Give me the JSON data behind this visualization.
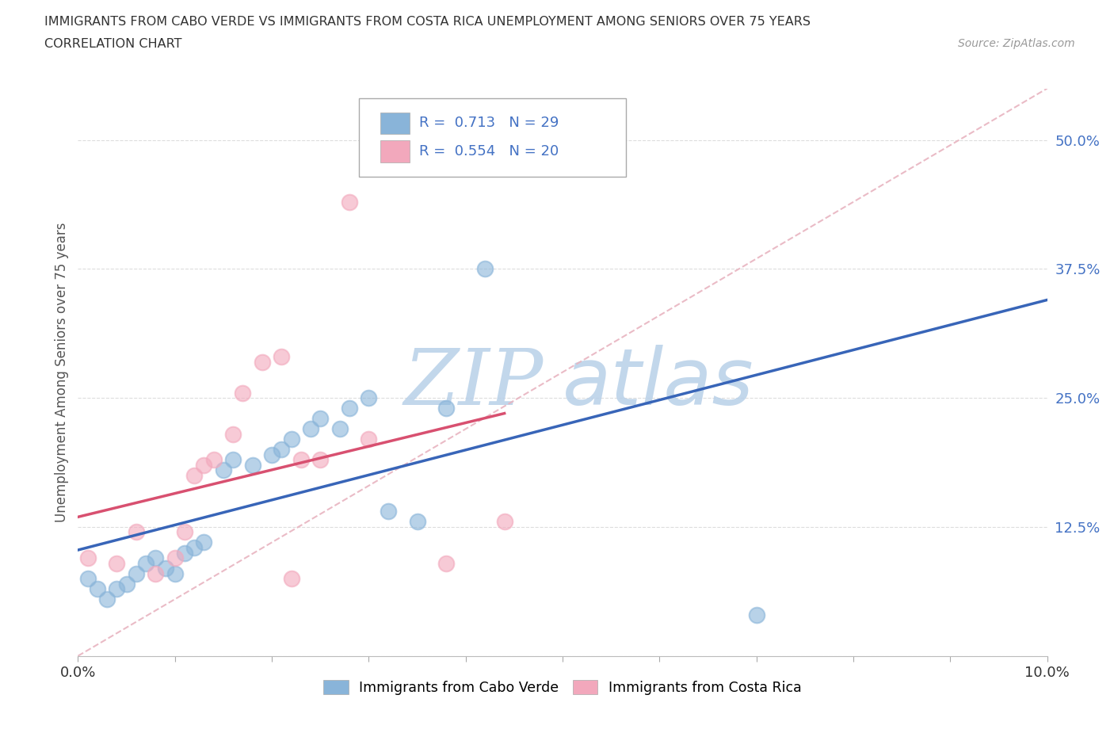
{
  "title_line1": "IMMIGRANTS FROM CABO VERDE VS IMMIGRANTS FROM COSTA RICA UNEMPLOYMENT AMONG SENIORS OVER 75 YEARS",
  "title_line2": "CORRELATION CHART",
  "source_text": "Source: ZipAtlas.com",
  "ylabel": "Unemployment Among Seniors over 75 years",
  "xlim": [
    0.0,
    0.1
  ],
  "ylim": [
    0.0,
    0.55
  ],
  "yticks": [
    0.0,
    0.125,
    0.25,
    0.375,
    0.5
  ],
  "ytick_labels": [
    "",
    "12.5%",
    "25.0%",
    "37.5%",
    "50.0%"
  ],
  "xtick_positions": [
    0.0,
    0.01,
    0.02,
    0.03,
    0.04,
    0.05,
    0.06,
    0.07,
    0.08,
    0.09,
    0.1
  ],
  "xtick_labels": [
    "0.0%",
    "",
    "",
    "",
    "",
    "",
    "",
    "",
    "",
    "",
    "10.0%"
  ],
  "cabo_verde_color": "#89b4d9",
  "costa_rica_color": "#f2a8bc",
  "cabo_verde_R": 0.713,
  "cabo_verde_N": 29,
  "costa_rica_R": 0.554,
  "costa_rica_N": 20,
  "diag_color": "#e8b4c0",
  "cabo_verde_line_color": "#3865b8",
  "costa_rica_line_color": "#d85070",
  "tick_color": "#4472c4",
  "watermark_color": "#b8d0e8",
  "cabo_verde_x": [
    0.001,
    0.002,
    0.003,
    0.004,
    0.005,
    0.006,
    0.007,
    0.008,
    0.009,
    0.01,
    0.011,
    0.012,
    0.013,
    0.015,
    0.016,
    0.018,
    0.02,
    0.021,
    0.022,
    0.024,
    0.025,
    0.027,
    0.028,
    0.03,
    0.032,
    0.035,
    0.038,
    0.042,
    0.07
  ],
  "cabo_verde_y": [
    0.075,
    0.065,
    0.055,
    0.065,
    0.07,
    0.08,
    0.09,
    0.095,
    0.085,
    0.08,
    0.1,
    0.105,
    0.11,
    0.18,
    0.19,
    0.185,
    0.195,
    0.2,
    0.21,
    0.22,
    0.23,
    0.22,
    0.24,
    0.25,
    0.14,
    0.13,
    0.24,
    0.375,
    0.04
  ],
  "costa_rica_x": [
    0.001,
    0.004,
    0.006,
    0.008,
    0.01,
    0.011,
    0.012,
    0.013,
    0.014,
    0.016,
    0.017,
    0.019,
    0.021,
    0.022,
    0.023,
    0.025,
    0.028,
    0.03,
    0.038,
    0.044
  ],
  "costa_rica_y": [
    0.095,
    0.09,
    0.12,
    0.08,
    0.095,
    0.12,
    0.175,
    0.185,
    0.19,
    0.215,
    0.255,
    0.285,
    0.29,
    0.075,
    0.19,
    0.19,
    0.44,
    0.21,
    0.09,
    0.13
  ]
}
